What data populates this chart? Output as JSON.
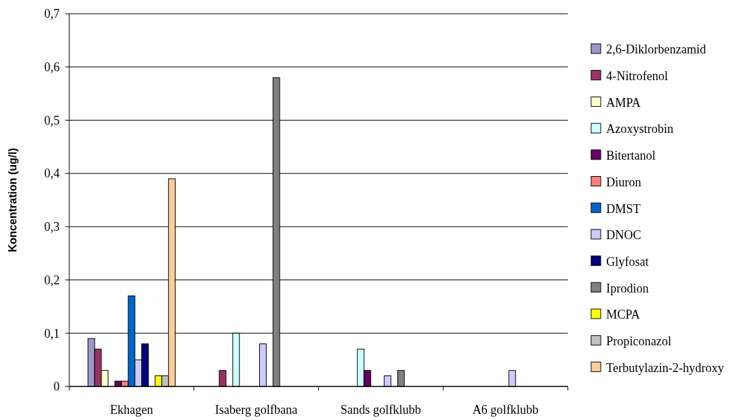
{
  "chart_data": {
    "type": "bar",
    "ylabel": "Koncentration (ug/l)",
    "categories": [
      "Ekhagen",
      "Isaberg golfbana",
      "Sands golfklubb",
      "A6 golfklubb"
    ],
    "series": [
      {
        "name": "2,6-Diklorbenzamid",
        "color": "#9999cc",
        "values": [
          0.09,
          null,
          null,
          null
        ]
      },
      {
        "name": "4-Nitrofenol",
        "color": "#993366",
        "values": [
          0.07,
          0.03,
          null,
          null
        ]
      },
      {
        "name": "AMPA",
        "color": "#ffffcc",
        "values": [
          0.03,
          null,
          null,
          null
        ]
      },
      {
        "name": "Azoxystrobin",
        "color": "#ccffff",
        "values": [
          null,
          0.1,
          0.07,
          null
        ]
      },
      {
        "name": "Bitertanol",
        "color": "#660066",
        "values": [
          0.01,
          null,
          0.03,
          null
        ]
      },
      {
        "name": "Diuron",
        "color": "#ff8080",
        "values": [
          0.01,
          null,
          null,
          null
        ]
      },
      {
        "name": "DMST",
        "color": "#0066cc",
        "values": [
          0.17,
          null,
          null,
          null
        ]
      },
      {
        "name": "DNOC",
        "color": "#ccccff",
        "values": [
          0.05,
          0.08,
          0.02,
          0.03
        ]
      },
      {
        "name": "Glyfosat",
        "color": "#000080",
        "values": [
          0.08,
          null,
          null,
          null
        ]
      },
      {
        "name": "Iprodion",
        "color": "#808080",
        "values": [
          null,
          0.58,
          0.03,
          null
        ]
      },
      {
        "name": "MCPA",
        "color": "#ffff00",
        "values": [
          0.02,
          null,
          null,
          null
        ]
      },
      {
        "name": "Propiconazol",
        "color": "#c0c0c0",
        "values": [
          0.02,
          null,
          null,
          null
        ]
      },
      {
        "name": "Terbutylazin-2-hydroxy",
        "color": "#ffcc99",
        "values": [
          0.39,
          null,
          null,
          null
        ]
      }
    ],
    "ylim": [
      0,
      0.7
    ],
    "yticks": [
      0,
      {
        "value": 0.1,
        "label": "0,1"
      },
      {
        "value": 0.2,
        "label": "0,2"
      },
      {
        "value": 0.3,
        "label": "0,3"
      },
      {
        "value": 0.4,
        "label": "0,4"
      },
      {
        "value": 0.5,
        "label": "0,5"
      },
      {
        "value": 0.6,
        "label": "0,6"
      },
      {
        "value": 0.7,
        "label": "0,7"
      }
    ],
    "grid": "y",
    "legend": "right"
  }
}
